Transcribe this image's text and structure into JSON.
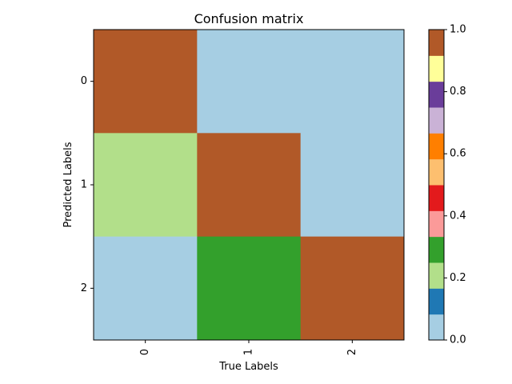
{
  "chart_data": {
    "type": "heatmap",
    "title": "Confusion matrix",
    "xlabel": "True Labels",
    "ylabel": "Predicted Labels",
    "x_categories": [
      "0",
      "1",
      "2"
    ],
    "y_categories": [
      "0",
      "1",
      "2"
    ],
    "values": [
      [
        1.0,
        0.0,
        0.0
      ],
      [
        0.2,
        1.0,
        0.0
      ],
      [
        0.0,
        0.3,
        1.0
      ]
    ],
    "colorbar": {
      "range": [
        0.0,
        1.0
      ],
      "ticks": [
        0.0,
        0.2,
        0.4,
        0.6,
        0.8,
        1.0
      ],
      "tick_labels": [
        "0.0",
        "0.2",
        "0.4",
        "0.6",
        "0.8",
        "1.0"
      ],
      "colors": [
        "#a6cee3",
        "#1f78b4",
        "#b2df8a",
        "#33a02c",
        "#fb9a99",
        "#e31a1c",
        "#fdbf6f",
        "#ff7f00",
        "#cab2d6",
        "#6a3d9a",
        "#ffff99",
        "#b15928"
      ]
    },
    "colormap": "Paired",
    "grid": false
  }
}
